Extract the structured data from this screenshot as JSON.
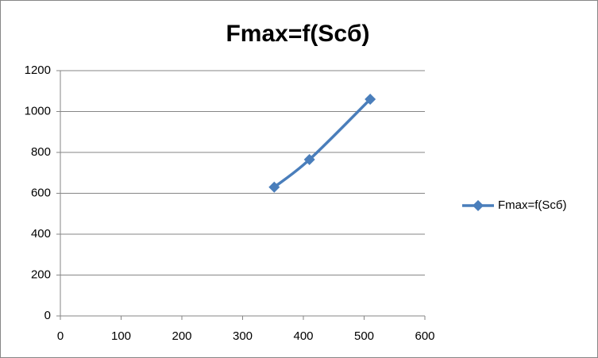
{
  "chart_data": {
    "type": "line",
    "title": "Fmax=f(Scб)",
    "series": [
      {
        "name": "Fmax=f(Scб)",
        "color": "#4a7ebb",
        "x": [
          352,
          410,
          510
        ],
        "values": [
          630,
          765,
          1060
        ]
      }
    ],
    "xlim": [
      0,
      600
    ],
    "xticks": [
      0,
      100,
      200,
      300,
      400,
      500,
      600
    ],
    "ylim": [
      0,
      1200
    ],
    "yticks": [
      0,
      200,
      400,
      600,
      800,
      1000,
      1200
    ],
    "grid": true,
    "legend": "right",
    "smooth": true
  }
}
